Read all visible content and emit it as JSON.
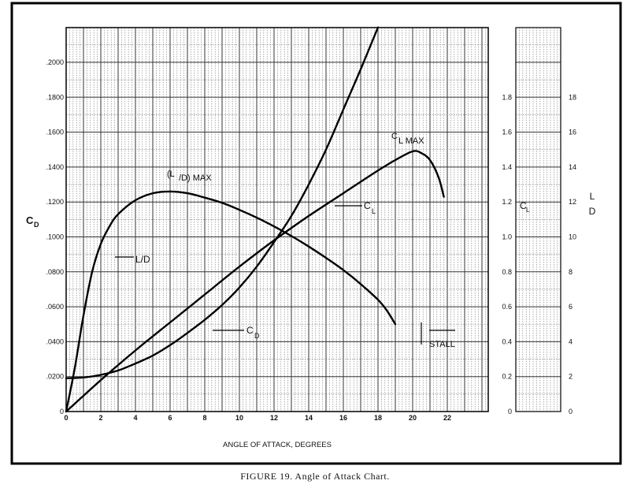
{
  "chart_data": {
    "type": "line",
    "xlabel": "ANGLE OF ATTACK, DEGREES",
    "x_ticks": [
      "0",
      "2",
      "4",
      "6",
      "8",
      "10",
      "12",
      "14",
      "16",
      "18",
      "20",
      "22"
    ],
    "xlim": [
      0,
      24
    ],
    "left_axis": {
      "label": [
        "C",
        "D"
      ],
      "ylim": [
        0,
        0.22
      ],
      "ticks": [
        "0",
        ".0200",
        ".0400",
        ".0600",
        ".0800",
        ".1000",
        ".1200",
        ".1400",
        ".1600",
        ".1800",
        ".2000"
      ]
    },
    "cl_axis": {
      "label": [
        "C",
        "L"
      ],
      "ylim": [
        0,
        2.2
      ],
      "ticks": [
        "0",
        "0.2",
        "0.4",
        "0.6",
        "0.8",
        "1.0",
        "1.2",
        "1.4",
        "1.6",
        "1.8"
      ]
    },
    "ld_axis": {
      "label": [
        "L",
        "D"
      ],
      "ylim": [
        0,
        22
      ],
      "ticks": [
        "0",
        "2",
        "4",
        "6",
        "8",
        "10",
        "12",
        "14",
        "16",
        "18"
      ]
    },
    "series": [
      {
        "name": "C_D",
        "axis": "cd",
        "x": [
          0,
          1,
          2,
          3,
          4,
          5,
          6,
          7,
          8,
          9,
          10,
          11,
          12,
          13,
          14,
          15,
          16,
          17,
          18
        ],
        "y": [
          0.019,
          0.0195,
          0.021,
          0.0235,
          0.0275,
          0.032,
          0.038,
          0.045,
          0.0525,
          0.061,
          0.071,
          0.083,
          0.097,
          0.112,
          0.13,
          0.15,
          0.173,
          0.196,
          0.22
        ]
      },
      {
        "name": "C_L",
        "axis": "cl",
        "x": [
          0,
          2,
          4,
          6,
          8,
          10,
          12,
          14,
          16,
          18,
          19,
          20,
          20.5,
          21,
          21.5,
          21.8
        ],
        "y": [
          0.0,
          0.18,
          0.35,
          0.51,
          0.67,
          0.83,
          0.98,
          1.12,
          1.25,
          1.38,
          1.44,
          1.49,
          1.48,
          1.44,
          1.34,
          1.23
        ]
      },
      {
        "name": "L_D",
        "axis": "ld",
        "x": [
          0,
          0.5,
          1,
          1.5,
          2,
          2.5,
          3,
          4,
          5,
          6,
          7,
          8,
          9,
          10,
          11,
          12,
          13,
          14,
          15,
          16,
          17,
          18,
          18.5,
          19
        ],
        "y": [
          0,
          2.5,
          5.5,
          8.0,
          9.6,
          10.6,
          11.3,
          12.1,
          12.5,
          12.6,
          12.5,
          12.25,
          11.95,
          11.55,
          11.1,
          10.6,
          10.05,
          9.45,
          8.8,
          8.1,
          7.3,
          6.4,
          5.8,
          5.0
        ]
      }
    ],
    "annotations": {
      "ld_max": "(L/D) MAX",
      "cl_max": "C L MAX",
      "stall": "STALL",
      "ld_label": "L/D",
      "cl_label": "C L",
      "cd_label": "C D"
    },
    "grid": true
  },
  "caption": "FIGURE 19.   Angle of Attack Chart."
}
